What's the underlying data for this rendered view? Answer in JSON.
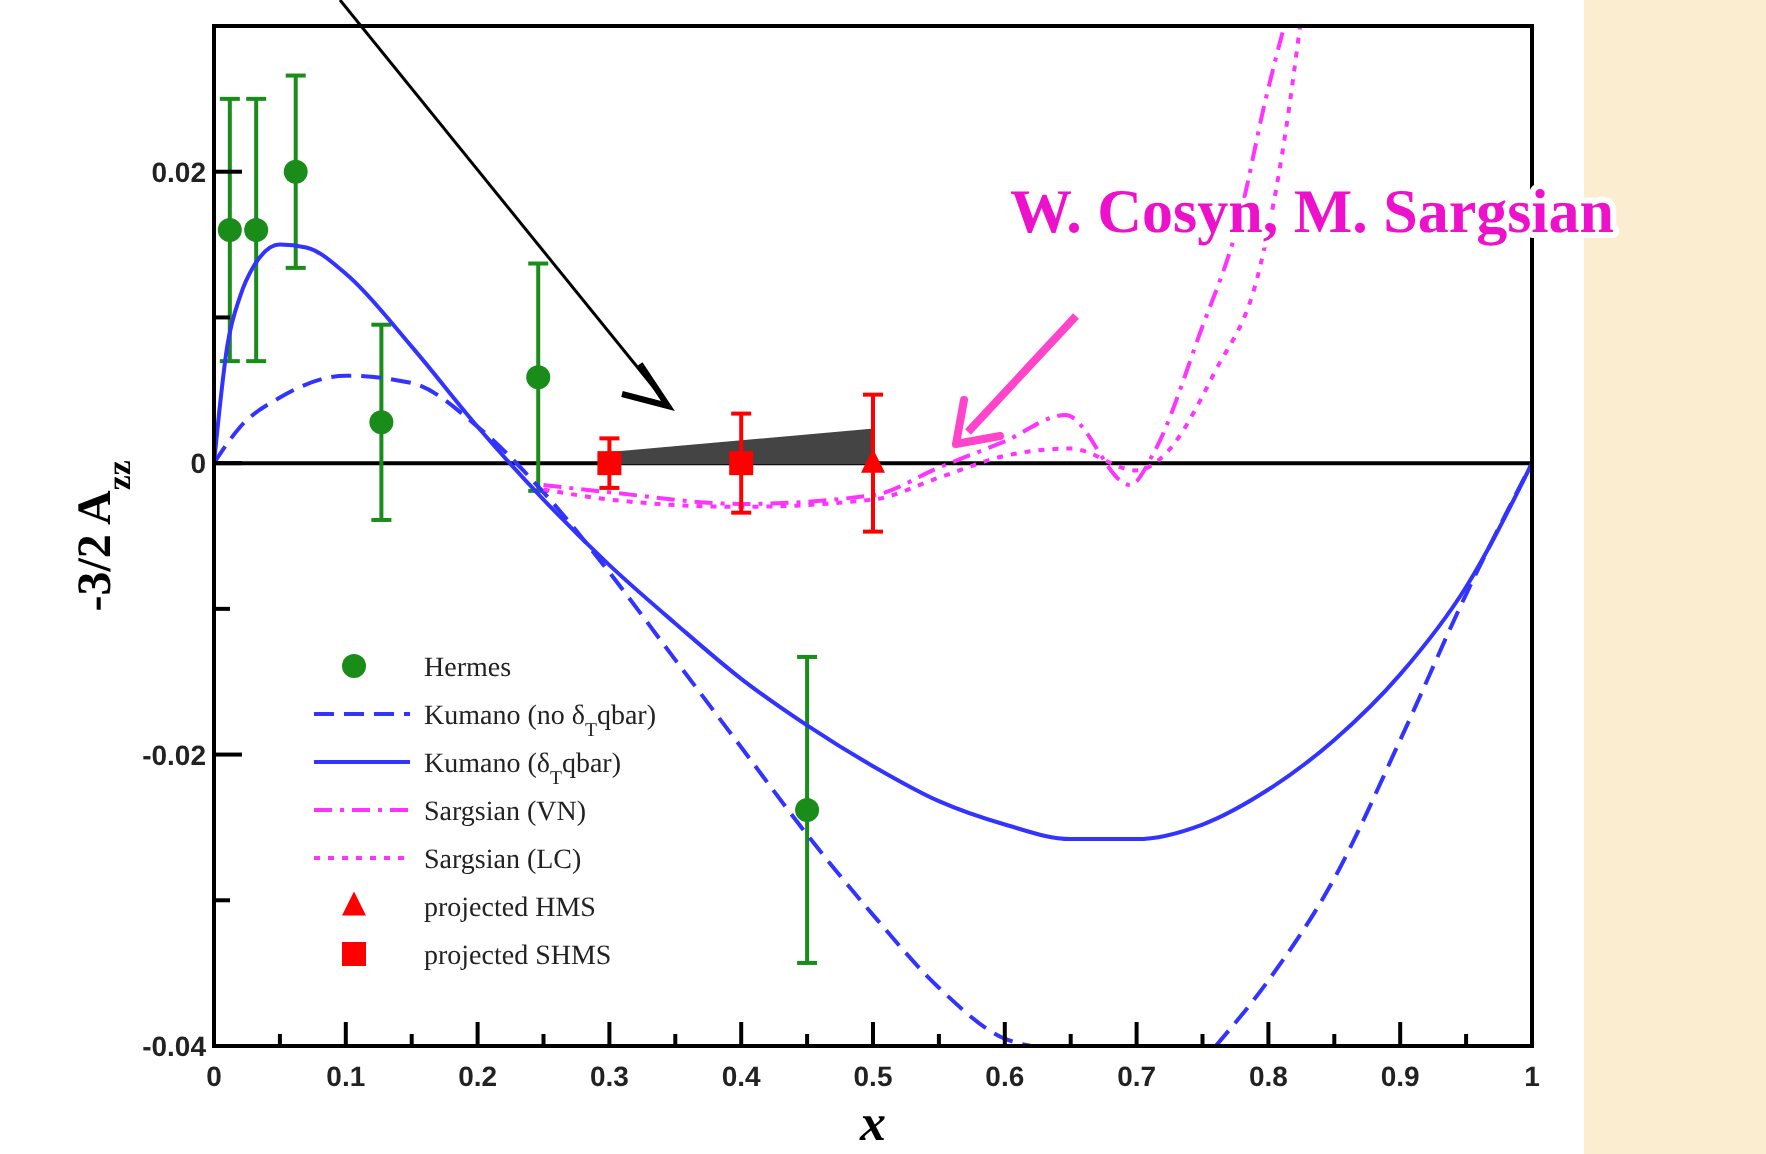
{
  "chart_data": {
    "type": "line",
    "xlabel": "x",
    "ylabel": "-3/2 A$_{zz}$",
    "xlim": [
      0,
      1
    ],
    "ylim": [
      -0.04,
      0.03
    ],
    "xticks": [
      0,
      {
        "value": 0.05,
        "label": null
      },
      0.1,
      {
        "value": 0.15,
        "label": null
      },
      0.2,
      {
        "value": 0.25,
        "label": null
      },
      0.3,
      {
        "value": 0.35,
        "label": null
      },
      0.4,
      {
        "value": 0.45,
        "label": null
      },
      0.5,
      {
        "value": 0.55,
        "label": null
      },
      0.6,
      {
        "value": 0.65,
        "label": null
      },
      0.7,
      {
        "value": 0.75,
        "label": null
      },
      0.8,
      {
        "value": 0.85,
        "label": null
      },
      0.9,
      {
        "value": 0.95,
        "label": null
      },
      1
    ],
    "yticks": [
      -0.04,
      {
        "value": -0.03,
        "label": null
      },
      -0.02,
      {
        "value": -0.01,
        "label": null
      },
      0,
      {
        "value": 0.01,
        "label": null
      },
      0.02
    ],
    "ref_lines": [
      {
        "axis": "y",
        "value": 0,
        "color": "#000000"
      }
    ],
    "legend": "bottom left",
    "grid": false,
    "annotations": [
      "W. Cosyn, M. Sargsian"
    ],
    "series": [
      {
        "type": "area",
        "color": "#444444",
        "x": [
          0.3,
          0.5
        ],
        "values": [
          0.0007,
          0.0023
        ]
      },
      {
        "type": "scatter",
        "name": "Hermes",
        "color": "#1a8c1a",
        "marker": "circle",
        "x": [
          0.012,
          0.032,
          0.062,
          0.127,
          0.246,
          0.45
        ],
        "values": [
          0.016,
          0.016,
          0.02,
          0.0028,
          0.0059,
          -0.0238
        ],
        "errors": [
          0.009,
          0.009,
          0.0066,
          0.0067,
          0.0078,
          0.0105
        ]
      },
      {
        "name": "Kumano (no δ$_{T}$qbar)",
        "color": "#3333ff",
        "line_style": "dashed",
        "x": [
          0,
          0.02,
          0.05,
          0.1,
          0.15,
          0.2,
          0.25,
          0.3,
          0.35,
          0.4,
          0.45,
          0.5,
          0.55,
          0.6,
          0.62,
          0.7,
          0.76,
          0.8,
          0.85,
          0.9,
          0.95,
          1
        ],
        "values": [
          0,
          0.0025,
          0.0045,
          0.006,
          0.0055,
          0.0025,
          -0.002,
          -0.0075,
          -0.0135,
          -0.0195,
          -0.0255,
          -0.031,
          -0.036,
          -0.0395,
          -0.04,
          null,
          -0.04,
          -0.0355,
          -0.0285,
          -0.019,
          -0.009,
          0
        ]
      },
      {
        "name": "Kumano (δ$_{T}$qbar)",
        "color": "#3333ff",
        "line_style": "solid",
        "x": [
          0,
          0.01,
          0.02,
          0.03,
          0.05,
          0.07,
          0.1,
          0.15,
          0.2,
          0.25,
          0.3,
          0.35,
          0.4,
          0.45,
          0.5,
          0.55,
          0.6,
          0.65,
          0.7,
          0.75,
          0.8,
          0.85,
          0.9,
          0.95,
          1
        ],
        "values": [
          0,
          0.008,
          0.0115,
          0.0135,
          0.015,
          0.0148,
          0.013,
          0.008,
          0.0025,
          -0.0025,
          -0.007,
          -0.011,
          -0.0148,
          -0.018,
          -0.0208,
          -0.0232,
          -0.0248,
          -0.0258,
          -0.0258,
          -0.0248,
          -0.0224,
          -0.019,
          -0.0145,
          -0.0085,
          0
        ]
      },
      {
        "name": "Sargsian (VN)",
        "color": "#ff33ff",
        "line_style": "dashdot",
        "x": [
          0.25,
          0.3,
          0.4,
          0.5,
          0.55,
          0.6,
          0.646,
          0.695,
          0.713,
          0.748,
          0.778,
          0.798,
          0.812
        ],
        "values": [
          -0.0015,
          -0.002,
          -0.0028,
          -0.0022,
          -0.0003,
          0.0015,
          0.0033,
          -0.0015,
          0.0007,
          0.0089,
          0.0168,
          0.025,
          0.03
        ]
      },
      {
        "name": "Sargsian (LC)",
        "color": "#ff33ff",
        "line_style": "dotted",
        "x": [
          0.25,
          0.3,
          0.4,
          0.5,
          0.55,
          0.6,
          0.65,
          0.7,
          0.718,
          0.759,
          0.794,
          0.813,
          0.824
        ],
        "values": [
          -0.0018,
          -0.0025,
          -0.003,
          -0.0025,
          -0.001,
          0.0005,
          0.001,
          -0.0005,
          0.0003,
          0.0062,
          0.0136,
          0.0227,
          0.03
        ]
      },
      {
        "type": "scatter",
        "name": "projected HMS",
        "color": "#ff0000",
        "marker": "triangle",
        "x": [
          0.5
        ],
        "values": [
          0
        ],
        "errors": [
          0.0047
        ]
      },
      {
        "type": "scatter",
        "name": "projected SHMS",
        "color": "#ff0000",
        "marker": "square",
        "x": [
          0.3,
          0.4
        ],
        "values": [
          0,
          0
        ],
        "errors": [
          0.0017,
          0.0034
        ]
      }
    ]
  }
}
